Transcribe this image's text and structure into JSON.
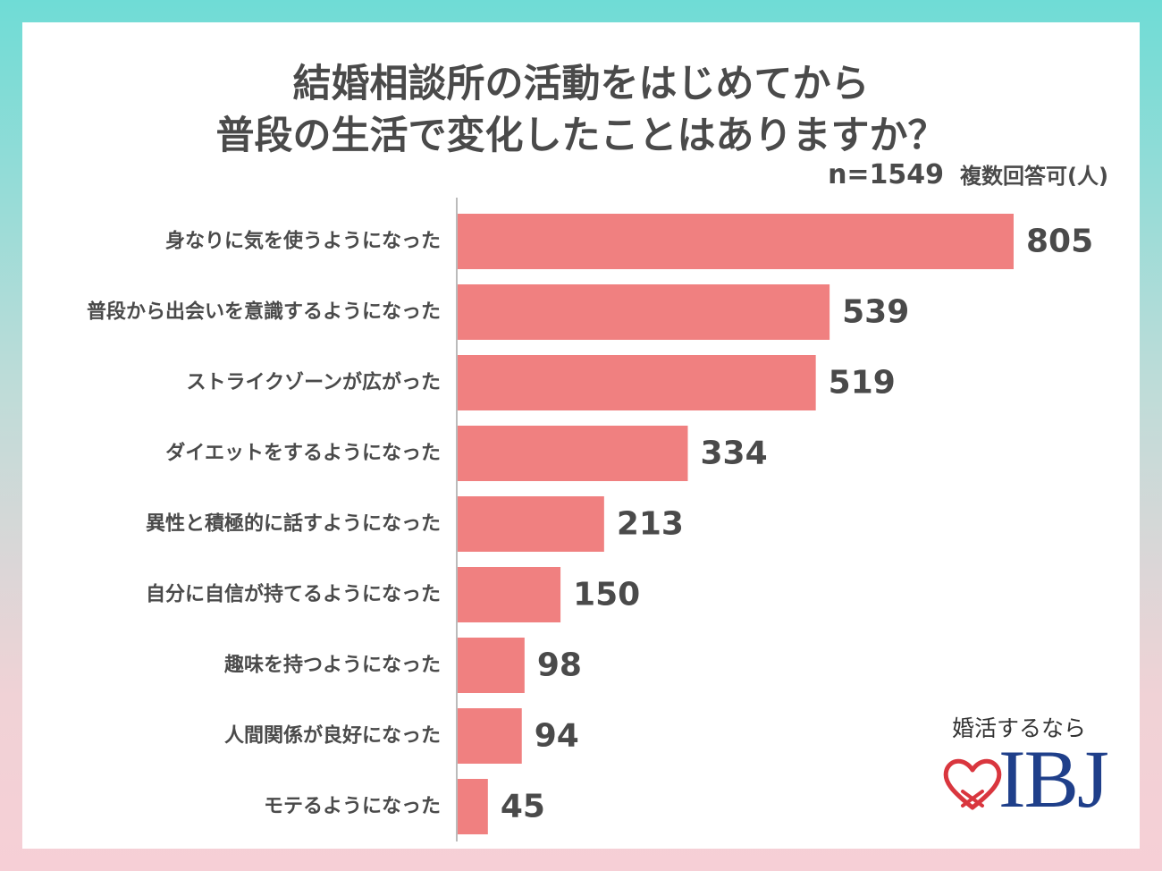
{
  "chart_data": {
    "type": "bar",
    "orientation": "horizontal",
    "title": "結婚相談所の活動をはじめてから普段の生活で変化したことはありますか？",
    "title_lines": [
      "結婚相談所の活動をはじめてから",
      "普段の生活で変化したことはありますか？"
    ],
    "sample_size": "n=1549",
    "note": "複数回答可(人)",
    "categories": [
      "身なりに気を使うようになった",
      "普段から出会いを意識するようになった",
      "ストライクゾーンが広がった",
      "ダイエットをするようになった",
      "異性と積極的に話すようになった",
      "自分に自信が持てるようになった",
      "趣味を持つようになった",
      "人間関係が良好になった",
      "モテるようになった"
    ],
    "values": [
      805,
      539,
      519,
      334,
      213,
      150,
      98,
      94,
      45
    ],
    "xlim": [
      0,
      805
    ],
    "grid": false,
    "bar_color": "#f08080",
    "axis_color": "#bbbbbb"
  },
  "brand": {
    "tagline": "婚活するなら",
    "name": "IBJ",
    "heart_color": "#d9363e",
    "name_color": "#1f3f8a"
  },
  "colors": {
    "text": "#4a4a4a",
    "background_top": "#6fdcd6",
    "background_bottom": "#f6cfd6"
  }
}
